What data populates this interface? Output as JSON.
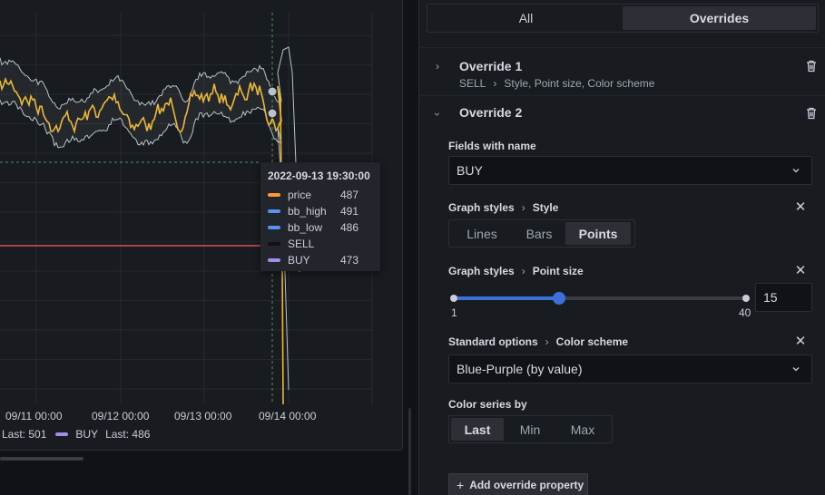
{
  "chart_data": {
    "type": "line",
    "x_tick_labels": [
      "09/11 00:00",
      "09/12 00:00",
      "09/13 00:00",
      "09/14 00:00"
    ],
    "series": [
      {
        "name": "price",
        "color": "#ff9830"
      },
      {
        "name": "bb_high",
        "color": "#5794f2"
      },
      {
        "name": "bb_low",
        "color": "#5794f2"
      },
      {
        "name": "SELL",
        "color": "#111217"
      },
      {
        "name": "BUY",
        "color": "#a48de8"
      }
    ],
    "grid": true,
    "legend_placement": "bottom",
    "tooltip": {
      "time": "2022-09-13 19:30:00",
      "rows": [
        {
          "name": "price",
          "value": "487",
          "color": "#ff9830"
        },
        {
          "name": "bb_high",
          "value": "491",
          "color": "#5794f2"
        },
        {
          "name": "bb_low",
          "value": "486",
          "color": "#5794f2"
        },
        {
          "name": "SELL",
          "value": "",
          "color": "#111217"
        },
        {
          "name": "BUY",
          "value": "473",
          "color": "#a48de8"
        }
      ]
    },
    "legend": {
      "prev_text": "Last: 501",
      "buy_name": "BUY",
      "buy_last": "Last: 486",
      "buy_color": "#a48de8"
    }
  },
  "tabs": [
    {
      "label": "All",
      "active": false
    },
    {
      "label": "Overrides",
      "active": true
    }
  ],
  "override1": {
    "title": "Override 1",
    "matcher": "SELL",
    "summary": "Style, Point size, Color scheme"
  },
  "override2": {
    "title": "Override 2",
    "fields_label": "Fields with name",
    "fields_value": "BUY",
    "style": {
      "category": "Graph styles",
      "name": "Style",
      "options": [
        "Lines",
        "Bars",
        "Points"
      ],
      "selected": "Points"
    },
    "point_size": {
      "category": "Graph styles",
      "name": "Point size",
      "min": "1",
      "max": "40",
      "value": "15",
      "fraction": 0.359
    },
    "color_scheme": {
      "category": "Standard options",
      "name": "Color scheme",
      "value": "Blue-Purple (by value)"
    },
    "color_series_by": {
      "label": "Color series by",
      "options": [
        "Last",
        "Min",
        "Max"
      ],
      "selected": "Last"
    },
    "add_button": "Add override property"
  },
  "colors": {
    "accent": "#3d71d9",
    "price_line": "#eab839",
    "band_line": "#b8c4c9",
    "threshold": "#e0535a"
  }
}
